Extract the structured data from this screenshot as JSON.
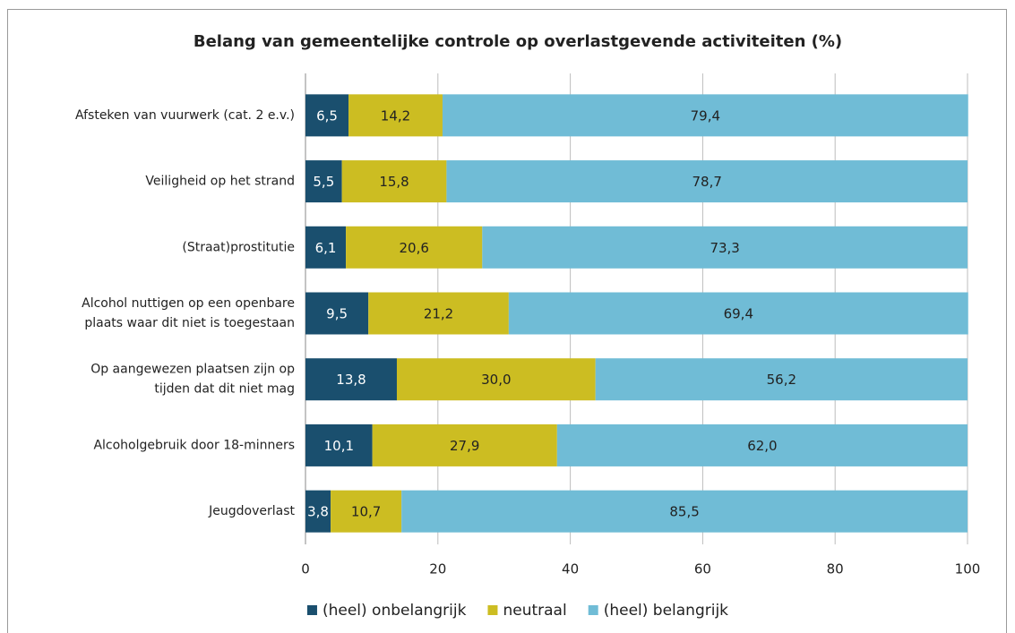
{
  "chart_data": {
    "type": "stacked-barh",
    "title": "Belang van gemeentelijke controle op overlastgevende activiteiten (%)",
    "categories": [
      "Afsteken van vuurwerk (cat. 2 e.v.)",
      "Veiligheid op het strand",
      "(Straat)prostitutie",
      "Alcohol nuttigen op een openbare\nplaats waar dit niet is toegestaan",
      "Op aangewezen plaatsen zijn op\ntijden dat dit niet mag",
      "Alcoholgebruik door 18-minners",
      "Jeugdoverlast"
    ],
    "series": [
      {
        "name": "(heel) onbelangrijk",
        "color": "#1a4f6e",
        "label_color": "#ffffff",
        "values": [
          6.5,
          5.5,
          6.1,
          9.5,
          13.8,
          10.1,
          3.8
        ],
        "value_labels": [
          "6,5",
          "5,5",
          "6,1",
          "9,5",
          "13,8",
          "10,1",
          "3,8"
        ]
      },
      {
        "name": "neutraal",
        "color": "#ccbd22",
        "label_color": "#222222",
        "values": [
          14.2,
          15.8,
          20.6,
          21.2,
          30.0,
          27.9,
          10.7
        ],
        "value_labels": [
          "14,2",
          "15,8",
          "20,6",
          "21,2",
          "30,0",
          "27,9",
          "10,7"
        ]
      },
      {
        "name": "(heel) belangrijk",
        "color": "#70bcd6",
        "label_color": "#222222",
        "values": [
          79.4,
          78.7,
          73.3,
          69.4,
          56.2,
          62.0,
          85.5
        ],
        "value_labels": [
          "79,4",
          "78,7",
          "73,3",
          "69,4",
          "56,2",
          "62,0",
          "85,5"
        ]
      }
    ],
    "xlim": [
      0,
      100
    ],
    "xticks": [
      0,
      20,
      40,
      60,
      80,
      100
    ],
    "grid": true,
    "legend": "bottom"
  }
}
